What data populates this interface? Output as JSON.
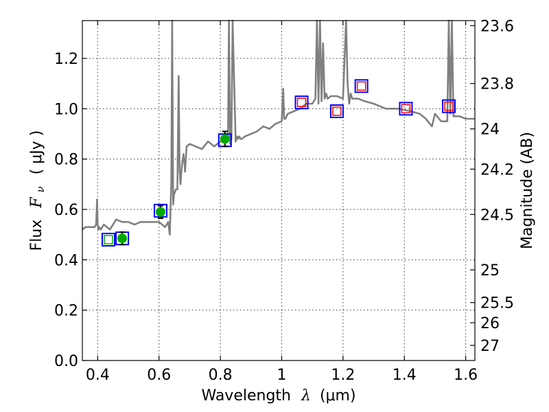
{
  "chart_data": {
    "type": "scatter",
    "xlabel": "Wavelength",
    "xlabel_symbol": "λ",
    "xlabel_unit": "(μm)",
    "ylabel_prefix": "Flux",
    "ylabel_symbol": "F",
    "ylabel_sub": "ν",
    "ylabel_unit": "( μJy )",
    "y2label": "Magnitude (AB)",
    "xlim": [
      0.35,
      1.63
    ],
    "ylim": [
      0.0,
      1.35
    ],
    "xticks": [
      0.4,
      0.6,
      0.8,
      1.0,
      1.2,
      1.4,
      1.6
    ],
    "xtick_labels": [
      "0.4",
      "0.6",
      "0.8",
      "1",
      "1.2",
      "1.4",
      "1.6"
    ],
    "yticks": [
      0.0,
      0.2,
      0.4,
      0.6,
      0.8,
      1.0,
      1.2
    ],
    "ytick_labels": [
      "0.0",
      "0.2",
      "0.4",
      "0.6",
      "0.8",
      "1.0",
      "1.2"
    ],
    "y2ticks": [
      {
        "label": "23.6",
        "flux": 1.33
      },
      {
        "label": "23.8",
        "flux": 1.1
      },
      {
        "label": "24",
        "flux": 0.92
      },
      {
        "label": "24.2",
        "flux": 0.76
      },
      {
        "label": "24.5",
        "flux": 0.58
      },
      {
        "label": "25",
        "flux": 0.36
      },
      {
        "label": "25.5",
        "flux": 0.23
      },
      {
        "label": "26",
        "flux": 0.15
      },
      {
        "label": "27",
        "flux": 0.06
      }
    ],
    "grid": true,
    "colors": {
      "spectrum": "#808080",
      "model_box": "#0000ff",
      "nir_box": "#ff0000",
      "opt_box": "#00aa00",
      "detection": "#00aa00",
      "errorbar": "#000000"
    },
    "series": [
      {
        "kind": "spectrum",
        "x": [
          0.35,
          0.36,
          0.38,
          0.39,
          0.395,
          0.398,
          0.4,
          0.402,
          0.405,
          0.41,
          0.42,
          0.44,
          0.46,
          0.48,
          0.5,
          0.52,
          0.54,
          0.56,
          0.58,
          0.6,
          0.61,
          0.62,
          0.63,
          0.635,
          0.64,
          0.643,
          0.646,
          0.649,
          0.655,
          0.66,
          0.664,
          0.667,
          0.67,
          0.675,
          0.68,
          0.685,
          0.69,
          0.7,
          0.72,
          0.74,
          0.76,
          0.78,
          0.8,
          0.82,
          0.825,
          0.828,
          0.832,
          0.836,
          0.84,
          0.85,
          0.855,
          0.858,
          0.862,
          0.866,
          0.87,
          0.88,
          0.9,
          0.92,
          0.94,
          0.96,
          0.98,
          1.0,
          1.005,
          1.008,
          1.012,
          1.02,
          1.04,
          1.06,
          1.08,
          1.1,
          1.11,
          1.115,
          1.12,
          1.125,
          1.13,
          1.135,
          1.14,
          1.145,
          1.15,
          1.16,
          1.18,
          1.2,
          1.21,
          1.215,
          1.22,
          1.225,
          1.23,
          1.25,
          1.27,
          1.3,
          1.34,
          1.38,
          1.42,
          1.45,
          1.47,
          1.49,
          1.5,
          1.52,
          1.54,
          1.545,
          1.55,
          1.555,
          1.56,
          1.58,
          1.6,
          1.63
        ],
        "y": [
          0.52,
          0.53,
          0.53,
          0.53,
          0.54,
          0.64,
          0.54,
          0.52,
          0.53,
          0.52,
          0.54,
          0.52,
          0.56,
          0.55,
          0.55,
          0.54,
          0.55,
          0.55,
          0.55,
          0.55,
          0.54,
          0.53,
          0.55,
          0.5,
          0.7,
          1.35,
          0.62,
          0.66,
          0.68,
          0.68,
          1.13,
          0.76,
          0.7,
          0.78,
          0.82,
          0.75,
          0.85,
          0.86,
          0.85,
          0.84,
          0.87,
          0.85,
          0.87,
          0.87,
          0.89,
          1.35,
          0.86,
          0.88,
          1.35,
          0.87,
          0.89,
          0.88,
          0.89,
          0.88,
          0.88,
          0.89,
          0.9,
          0.91,
          0.93,
          0.92,
          0.94,
          0.95,
          1.08,
          0.96,
          0.96,
          0.98,
          0.99,
          1.0,
          1.02,
          1.02,
          1.04,
          1.35,
          1.02,
          1.35,
          1.03,
          1.26,
          1.04,
          1.06,
          1.04,
          1.05,
          1.05,
          1.04,
          1.35,
          1.1,
          1.02,
          1.06,
          1.04,
          1.04,
          1.03,
          1.02,
          1.0,
          1.0,
          0.99,
          0.98,
          0.96,
          0.93,
          0.98,
          0.95,
          0.95,
          1.35,
          0.98,
          1.35,
          0.97,
          0.97,
          0.96,
          0.96
        ]
      },
      {
        "kind": "model_points",
        "x": [
          0.435,
          0.48,
          0.605,
          0.815,
          1.065,
          1.18,
          1.26,
          1.405,
          1.545
        ],
        "y": [
          0.48,
          0.485,
          0.595,
          0.875,
          1.025,
          0.99,
          1.09,
          1.0,
          1.01
        ]
      },
      {
        "kind": "nir_points",
        "x": [
          1.065,
          1.18,
          1.26,
          1.405,
          1.545
        ],
        "y": [
          1.025,
          0.99,
          1.09,
          1.0,
          1.01
        ]
      },
      {
        "kind": "optical_nondetection",
        "x": [
          0.435
        ],
        "y": [
          0.48
        ]
      },
      {
        "kind": "detections",
        "x": [
          0.48,
          0.605,
          0.815
        ],
        "y": [
          0.485,
          0.59,
          0.88
        ],
        "yerr": [
          0.025,
          0.025,
          0.03
        ]
      }
    ]
  }
}
